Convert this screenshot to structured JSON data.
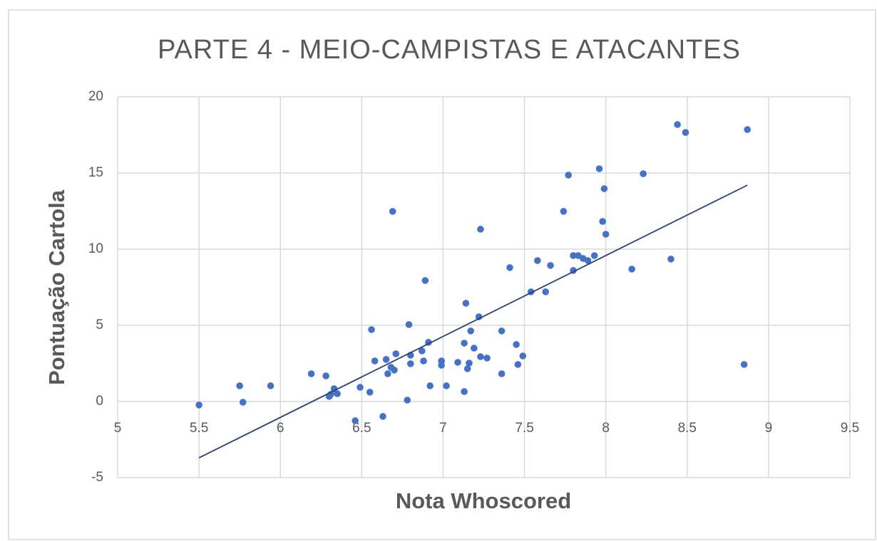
{
  "chart_data": {
    "type": "scatter",
    "title": "PARTE 4 - MEIO-CAMPISTAS  E ATACANTES",
    "x_label": "Nota Whoscored",
    "y_label": "Pontuação Cartola",
    "color": "#4472c4",
    "grid": true,
    "xlim": [
      5,
      9.5
    ],
    "ylim": [
      -5,
      20
    ],
    "xticks": [
      5,
      5.5,
      6,
      6.5,
      7,
      7.5,
      8,
      8.5,
      9,
      9.5
    ],
    "yticks": [
      -5,
      0,
      5,
      10,
      15,
      20
    ],
    "x": [
      5.5,
      5.75,
      5.77,
      5.94,
      6.19,
      6.28,
      6.3,
      6.31,
      6.33,
      6.35,
      6.46,
      6.49,
      6.55,
      6.56,
      6.58,
      6.63,
      6.65,
      6.66,
      6.68,
      6.69,
      6.7,
      6.71,
      6.78,
      6.79,
      6.8,
      6.8,
      6.87,
      6.88,
      6.89,
      6.91,
      6.92,
      6.99,
      6.99,
      7.02,
      7.09,
      7.13,
      7.13,
      7.14,
      7.15,
      7.16,
      7.17,
      7.19,
      7.22,
      7.23,
      7.23,
      7.27,
      7.36,
      7.36,
      7.41,
      7.45,
      7.46,
      7.49,
      7.54,
      7.58,
      7.63,
      7.66,
      7.74,
      7.77,
      7.8,
      7.8,
      7.83,
      7.86,
      7.89,
      7.93,
      7.96,
      7.98,
      7.99,
      8.0,
      8.16,
      8.23,
      8.4,
      8.44,
      8.49,
      8.85,
      8.87
    ],
    "values": [
      -0.23,
      1.03,
      -0.05,
      1.03,
      1.82,
      1.68,
      0.33,
      0.47,
      0.84,
      0.51,
      -1.26,
      0.93,
      0.61,
      4.72,
      2.66,
      -0.98,
      2.76,
      1.82,
      2.24,
      12.48,
      2.06,
      3.13,
      0.09,
      5.05,
      2.48,
      3.04,
      3.32,
      2.66,
      7.94,
      3.88,
      1.03,
      2.66,
      2.38,
      1.03,
      2.57,
      3.83,
      0.65,
      6.45,
      2.15,
      2.52,
      4.63,
      3.5,
      5.56,
      11.31,
      2.94,
      2.85,
      4.63,
      1.82,
      8.79,
      3.74,
      2.43,
      2.99,
      7.2,
      9.25,
      7.2,
      8.93,
      12.48,
      14.86,
      8.6,
      9.58,
      9.58,
      9.39,
      9.25,
      9.58,
      15.28,
      11.82,
      13.97,
      10.98,
      8.69,
      14.95,
      9.35,
      18.18,
      17.66,
      2.43,
      17.85
    ],
    "trendline": {
      "color": "#2f3e7a",
      "x": [
        5.5,
        8.87
      ],
      "y": [
        -3.7,
        14.2
      ]
    }
  }
}
